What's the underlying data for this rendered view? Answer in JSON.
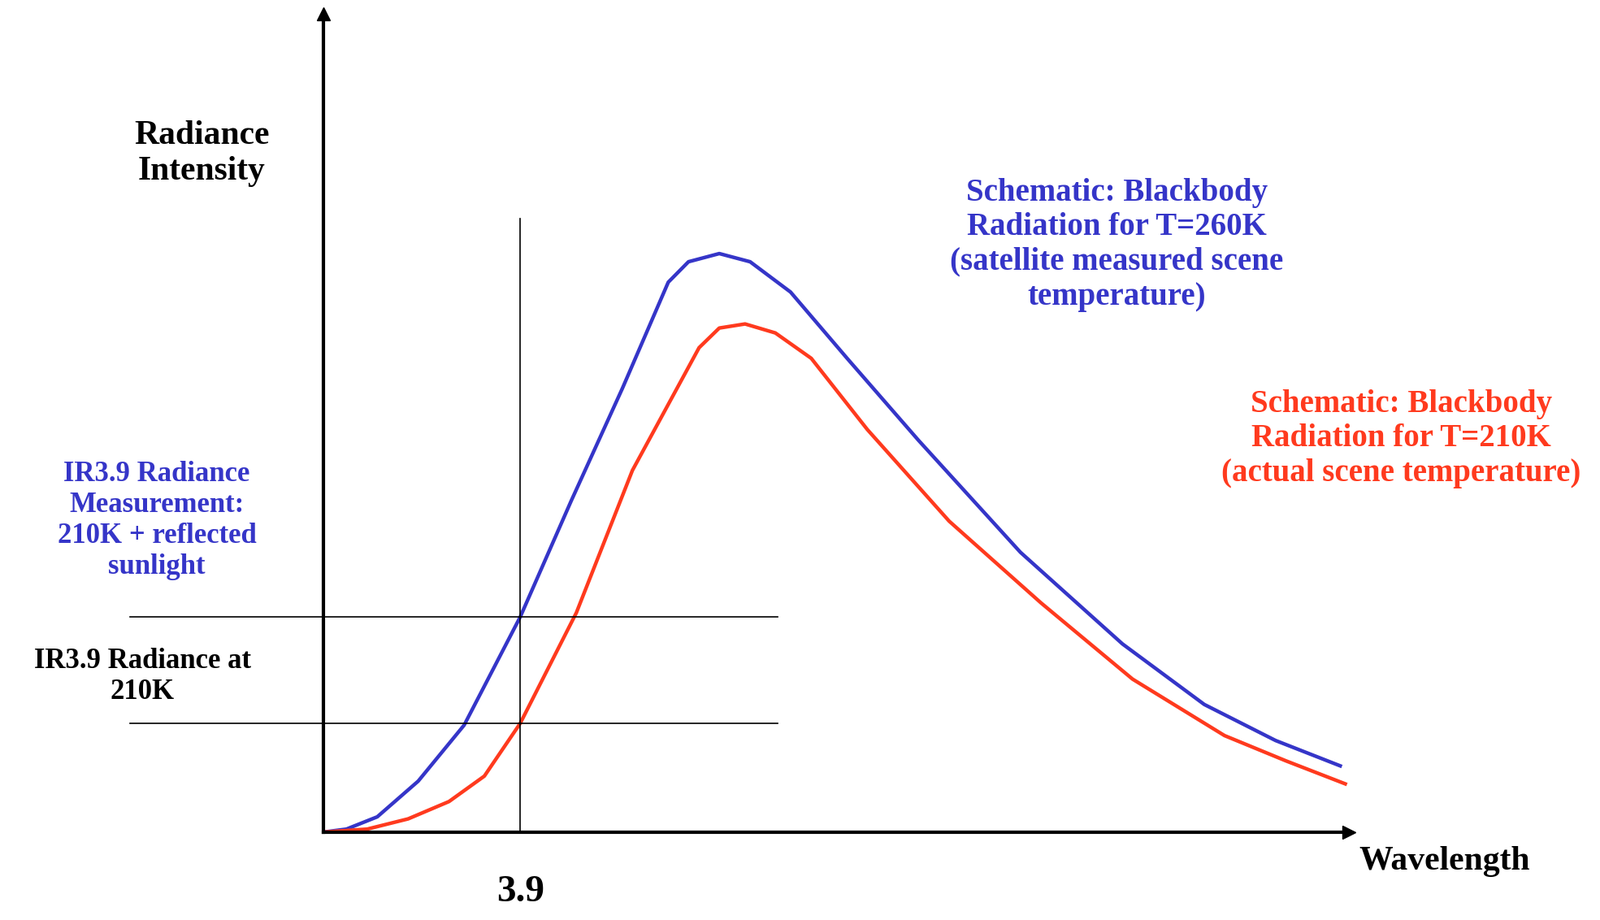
{
  "chart_data": {
    "type": "line",
    "ylabel": "Radiance\nIntensity",
    "xlabel": "Wavelength",
    "xlim": [
      0,
      20.3
    ],
    "ylim": [
      0,
      100
    ],
    "xticks": [
      3.9
    ],
    "yticks": [],
    "tick_labels": "x",
    "grid": false,
    "series": [
      {
        "label": "Schematic: Blackbody\nRadiation for T=260K\n(satellite measured scene\ntemperature)",
        "color": "#3535c8",
        "x": [
          0,
          0.46,
          1.07,
          1.88,
          2.79,
          3.9,
          4.91,
          5.92,
          6.83,
          7.23,
          7.84,
          8.45,
          9.25,
          10.37,
          11.78,
          13.8,
          15.82,
          17.44,
          18.85,
          20.13
        ],
        "values": [
          0,
          0.37,
          1.87,
          6.23,
          13.08,
          26.3,
          40.5,
          54.2,
          67.2,
          69.7,
          70.7,
          69.7,
          66.0,
          57.9,
          47.9,
          34.2,
          23.0,
          15.6,
          11.2,
          8.1
        ]
      },
      {
        "label": "Schematic: Blackbody\nRadiation for T=210K\n(actual scene temperature)",
        "color": "#ff3a1e",
        "x": [
          0,
          0.87,
          1.68,
          2.49,
          3.19,
          3.9,
          5.01,
          6.12,
          7.44,
          7.84,
          8.35,
          8.95,
          9.66,
          10.77,
          12.39,
          14.21,
          16.02,
          17.84,
          19.06,
          20.23
        ],
        "values": [
          0,
          0.37,
          1.62,
          3.74,
          6.85,
          13.3,
          26.8,
          44.2,
          59.2,
          61.6,
          62.1,
          61.0,
          57.9,
          49.2,
          38.0,
          28.0,
          18.7,
          11.8,
          8.7,
          5.9
        ]
      }
    ],
    "reference_lines": [
      {
        "label": "IR3.9 Radiance\nMeasurement:\n210K + reflected\nsunlight",
        "value": 26.3,
        "color": "#3535c8"
      },
      {
        "label": "IR3.9 Radiance at\n210K",
        "value": 13.3,
        "color": "#000000"
      }
    ]
  }
}
